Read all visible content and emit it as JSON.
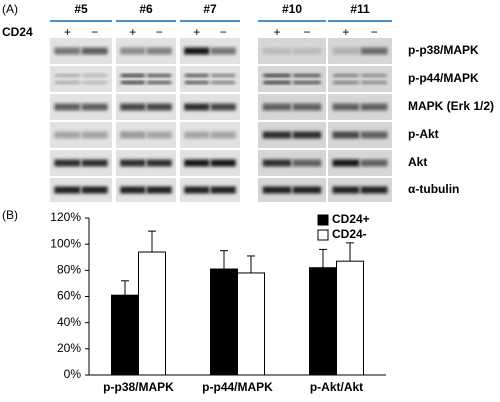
{
  "panel_a": {
    "label": "(A)",
    "samples": [
      "#5",
      "#6",
      "#7",
      "#10",
      "#11"
    ],
    "row_header": "CD24",
    "signs": [
      "+",
      "−"
    ],
    "proteins": [
      "p-p38/MAPK",
      "p-p44/MAPK",
      "MAPK (Erk 1/2)",
      "p-Akt",
      "Akt",
      "α-tubulin"
    ]
  },
  "panel_b_label": "(B)",
  "chart_data": {
    "type": "bar",
    "categories": [
      "p-p38/MAPK",
      "p-p44/MAPK",
      "p-Akt/Akt"
    ],
    "series": [
      {
        "name": "CD24+",
        "color": "#000000",
        "values": [
          61,
          81,
          82
        ],
        "errors": [
          11,
          14,
          14
        ]
      },
      {
        "name": "CD24-",
        "color": "#ffffff",
        "values": [
          94,
          78,
          87
        ],
        "errors": [
          16,
          13,
          14
        ]
      }
    ],
    "ylim": [
      0,
      120
    ],
    "yticks": [
      {
        "value": 0,
        "label": "0%"
      },
      {
        "value": 20,
        "label": "20%"
      },
      {
        "value": 40,
        "label": "40%"
      },
      {
        "value": 60,
        "label": "60%"
      },
      {
        "value": 80,
        "label": "80%"
      },
      {
        "value": 100,
        "label": "100%"
      },
      {
        "value": 120,
        "label": "120%"
      }
    ],
    "legend": "upper right"
  }
}
